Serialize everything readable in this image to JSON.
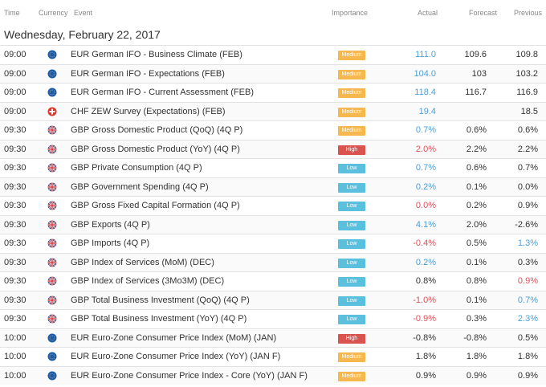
{
  "header": {
    "columns": [
      "Time",
      "Currency",
      "Event",
      "Importance",
      "Actual",
      "Forecast",
      "Previous"
    ]
  },
  "date": "Wednesday, February 22, 2017",
  "rows": [
    {
      "time": "09:00",
      "flag": "eu",
      "event": "EUR German IFO - Business Climate (FEB)",
      "importance": "Medium",
      "importance_color": "#f5b74e",
      "actual": "111.0",
      "actual_color": "#4a9fd8",
      "forecast": "109.6",
      "previous": "109.8",
      "previous_color": "#333333"
    },
    {
      "time": "09:00",
      "flag": "eu",
      "event": "EUR German IFO - Expectations (FEB)",
      "importance": "Medium",
      "importance_color": "#f5b74e",
      "actual": "104.0",
      "actual_color": "#4a9fd8",
      "forecast": "103",
      "previous": "103.2",
      "previous_color": "#333333"
    },
    {
      "time": "09:00",
      "flag": "eu",
      "event": "EUR German IFO - Current Assessment (FEB)",
      "importance": "Medium",
      "importance_color": "#f5b74e",
      "actual": "118.4",
      "actual_color": "#4a9fd8",
      "forecast": "116.7",
      "previous": "116.9",
      "previous_color": "#333333"
    },
    {
      "time": "09:00",
      "flag": "ch",
      "event": "CHF ZEW Survey (Expectations) (FEB)",
      "importance": "Medium",
      "importance_color": "#f5b74e",
      "actual": "19.4",
      "actual_color": "#4a9fd8",
      "forecast": null,
      "previous": "18.5",
      "previous_color": "#333333"
    },
    {
      "time": "09:30",
      "flag": "gb",
      "event": "GBP Gross Domestic Product (QoQ) (4Q P)",
      "importance": "Medium",
      "importance_color": "#f5b74e",
      "actual": "0.7%",
      "actual_color": "#4a9fd8",
      "forecast": "0.6%",
      "previous": "0.6%",
      "previous_color": "#333333"
    },
    {
      "time": "09:30",
      "flag": "gb",
      "event": "GBP Gross Domestic Product (YoY) (4Q P)",
      "importance": "High",
      "importance_color": "#d9534f",
      "actual": "2.0%",
      "actual_color": "#e0505a",
      "forecast": "2.2%",
      "previous": "2.2%",
      "previous_color": "#333333"
    },
    {
      "time": "09:30",
      "flag": "gb",
      "event": "GBP Private Consumption (4Q P)",
      "importance": "Low",
      "importance_color": "#5bc0de",
      "actual": "0.7%",
      "actual_color": "#4a9fd8",
      "forecast": "0.6%",
      "previous": "0.7%",
      "previous_color": "#333333"
    },
    {
      "time": "09:30",
      "flag": "gb",
      "event": "GBP Government Spending (4Q P)",
      "importance": "Low",
      "importance_color": "#5bc0de",
      "actual": "0.2%",
      "actual_color": "#4a9fd8",
      "forecast": "0.1%",
      "previous": "0.0%",
      "previous_color": "#333333"
    },
    {
      "time": "09:30",
      "flag": "gb",
      "event": "GBP Gross Fixed Capital Formation (4Q P)",
      "importance": "Low",
      "importance_color": "#5bc0de",
      "actual": "0.0%",
      "actual_color": "#e0505a",
      "forecast": "0.2%",
      "previous": "0.9%",
      "previous_color": "#333333"
    },
    {
      "time": "09:30",
      "flag": "gb",
      "event": "GBP Exports (4Q P)",
      "importance": "Low",
      "importance_color": "#5bc0de",
      "actual": "4.1%",
      "actual_color": "#4a9fd8",
      "forecast": "2.0%",
      "previous": "-2.6%",
      "previous_color": "#333333"
    },
    {
      "time": "09:30",
      "flag": "gb",
      "event": "GBP Imports (4Q P)",
      "importance": "Low",
      "importance_color": "#5bc0de",
      "actual": "-0.4%",
      "actual_color": "#e0505a",
      "forecast": "0.5%",
      "previous": "1.3%",
      "previous_color": "#4a9fd8"
    },
    {
      "time": "09:30",
      "flag": "gb",
      "event": "GBP Index of Services (MoM) (DEC)",
      "importance": "Low",
      "importance_color": "#5bc0de",
      "actual": "0.2%",
      "actual_color": "#4a9fd8",
      "forecast": "0.1%",
      "previous": "0.3%",
      "previous_color": "#333333"
    },
    {
      "time": "09:30",
      "flag": "gb",
      "event": "GBP Index of Services (3Mo3M) (DEC)",
      "importance": "Low",
      "importance_color": "#5bc0de",
      "actual": "0.8%",
      "actual_color": "#333333",
      "forecast": "0.8%",
      "previous": "0.9%",
      "previous_color": "#e0505a"
    },
    {
      "time": "09:30",
      "flag": "gb",
      "event": "GBP Total Business Investment (QoQ) (4Q P)",
      "importance": "Low",
      "importance_color": "#5bc0de",
      "actual": "-1.0%",
      "actual_color": "#e0505a",
      "forecast": "0.1%",
      "previous": "0.7%",
      "previous_color": "#4a9fd8"
    },
    {
      "time": "09:30",
      "flag": "gb",
      "event": "GBP Total Business Investment (YoY) (4Q P)",
      "importance": "Low",
      "importance_color": "#5bc0de",
      "actual": "-0.9%",
      "actual_color": "#e0505a",
      "forecast": "0.3%",
      "previous": "2.3%",
      "previous_color": "#4a9fd8"
    },
    {
      "time": "10:00",
      "flag": "eu",
      "event": "EUR Euro-Zone Consumer Price Index (MoM) (JAN)",
      "importance": "High",
      "importance_color": "#d9534f",
      "actual": "-0.8%",
      "actual_color": "#333333",
      "forecast": "-0.8%",
      "previous": "0.5%",
      "previous_color": "#333333"
    },
    {
      "time": "10:00",
      "flag": "eu",
      "event": "EUR Euro-Zone Consumer Price Index (YoY) (JAN F)",
      "importance": "Medium",
      "importance_color": "#f5b74e",
      "actual": "1.8%",
      "actual_color": "#333333",
      "forecast": "1.8%",
      "previous": "1.8%",
      "previous_color": "#333333"
    },
    {
      "time": "10:00",
      "flag": "eu",
      "event": "EUR Euro-Zone Consumer Price Index - Core (YoY) (JAN F)",
      "importance": "Medium",
      "importance_color": "#f5b74e",
      "actual": "0.9%",
      "actual_color": "#333333",
      "forecast": "0.9%",
      "previous": "0.9%",
      "previous_color": "#333333"
    }
  ]
}
